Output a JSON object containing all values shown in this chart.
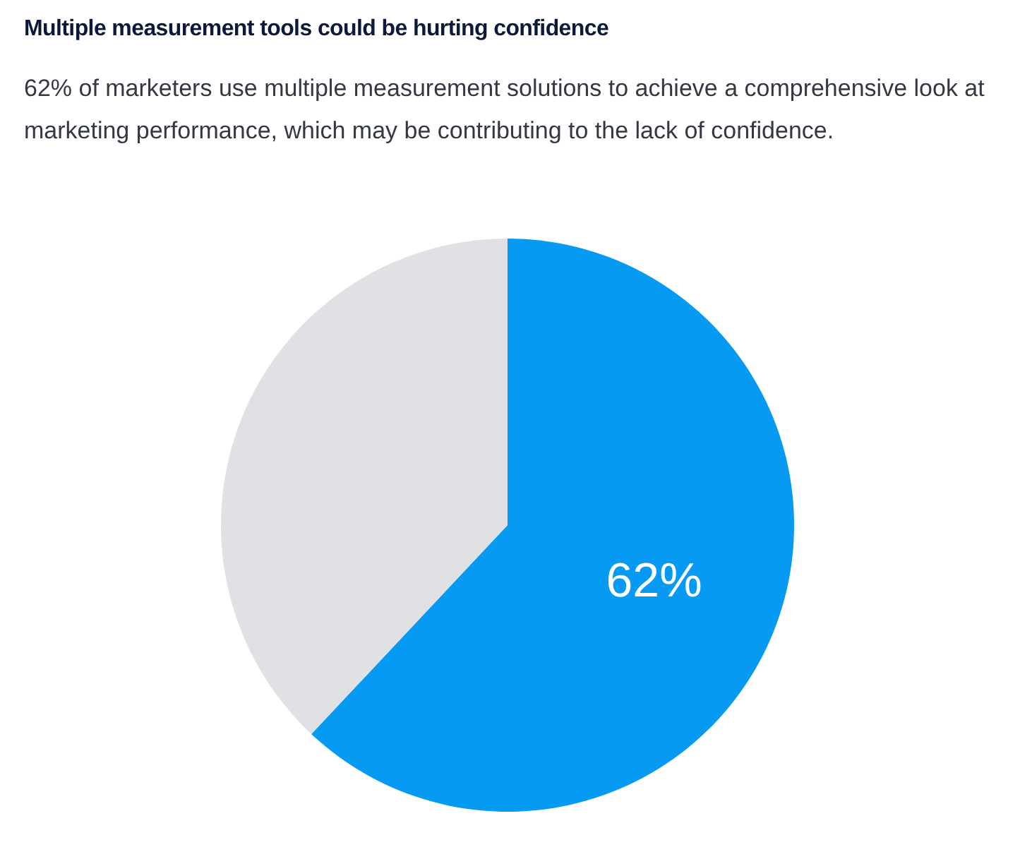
{
  "chart_data": {
    "type": "pie",
    "title": "Multiple measurement tools could be hurting confidence",
    "subtitle": "62% of marketers use multiple measurement solutions to achieve a comprehensive look at marketing performance, which may be contributing to the lack of confidence.",
    "categories": [
      null,
      null
    ],
    "values": [
      62,
      38
    ],
    "colors": [
      "#069af3",
      "#dfe1e5"
    ],
    "value_labels": [
      "62%",
      null
    ]
  }
}
